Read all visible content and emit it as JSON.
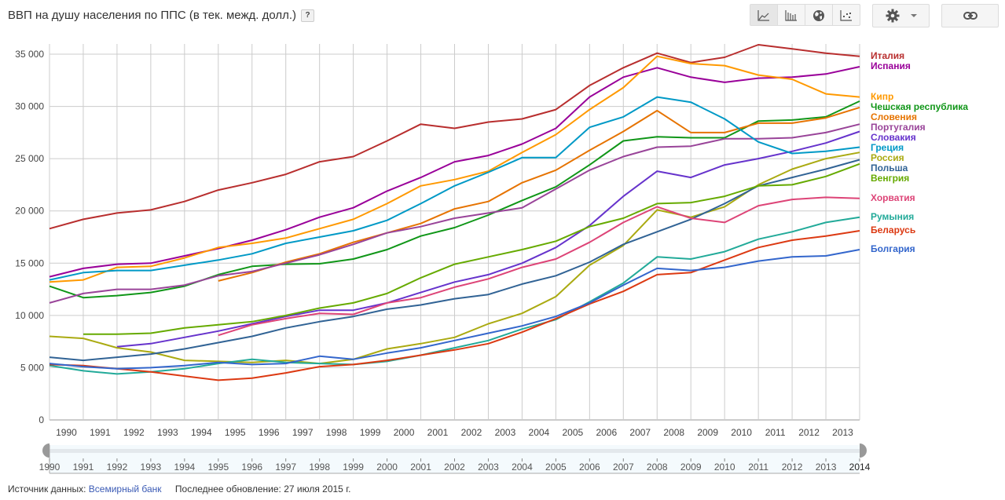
{
  "header": {
    "title": "ВВП на душу населения по ППС (в тек. межд. долл.)",
    "help_label": "?"
  },
  "toolbar": {
    "views": [
      {
        "name": "line-chart-icon",
        "active": true
      },
      {
        "name": "bar-chart-icon",
        "active": false
      },
      {
        "name": "map-globe-icon",
        "active": false
      },
      {
        "name": "scatter-chart-icon",
        "active": false
      }
    ],
    "settings_icon": "gear-icon",
    "settings_dropdown_icon": "caret-down-icon",
    "link_icon": "link-icon"
  },
  "footer": {
    "source_label": "Источник данных:",
    "source_link": "Всемирный банк",
    "updated": "Последнее обновление: 27 июля 2015 г."
  },
  "timeline": {
    "start": "1990",
    "end": "2014",
    "tick_labels": [
      "1990",
      "1991",
      "1992",
      "1993",
      "1994",
      "1995",
      "1996",
      "1997",
      "1998",
      "1999",
      "2000",
      "2001",
      "2002",
      "2003",
      "2004",
      "2005",
      "2006",
      "2007",
      "2008",
      "2009",
      "2010",
      "2011",
      "2012",
      "2013",
      "2014"
    ]
  },
  "chart_data": {
    "type": "line",
    "title": "ВВП на душу населения по ППС (в тек. межд. долл.)",
    "xlabel": "",
    "ylabel": "",
    "x": [
      1990,
      1991,
      1992,
      1993,
      1994,
      1995,
      1996,
      1997,
      1998,
      1999,
      2000,
      2001,
      2002,
      2003,
      2004,
      2005,
      2006,
      2007,
      2008,
      2009,
      2010,
      2011,
      2012,
      2013,
      2014
    ],
    "x_tick_labels": [
      "1990",
      "1991",
      "1992",
      "1993",
      "1994",
      "1995",
      "1996",
      "1997",
      "1998",
      "1999",
      "2000",
      "2001",
      "2002",
      "2003",
      "2004",
      "2005",
      "2006",
      "2007",
      "2008",
      "2009",
      "2010",
      "2011",
      "2012",
      "2013"
    ],
    "ylim": [
      0,
      35000
    ],
    "y_ticks": [
      0,
      5000,
      10000,
      15000,
      20000,
      25000,
      30000,
      35000
    ],
    "y_tick_labels": [
      "0",
      "5 000",
      "10 000",
      "15 000",
      "20 000",
      "25 000",
      "30 000",
      "35 000"
    ],
    "grid": true,
    "legend": "right",
    "series": [
      {
        "name": "Италия",
        "color": "#b82e2e",
        "values": [
          18300,
          19200,
          19800,
          20100,
          20900,
          22000,
          22700,
          23500,
          24700,
          25200,
          26700,
          28300,
          27900,
          28500,
          28800,
          29700,
          32000,
          33700,
          35100,
          34200,
          34700,
          35900,
          35500,
          35100,
          34800
        ]
      },
      {
        "name": "Испания",
        "color": "#990099",
        "values": [
          13700,
          14500,
          14900,
          15000,
          15700,
          16400,
          17200,
          18200,
          19400,
          20300,
          21900,
          23200,
          24700,
          25300,
          26400,
          27900,
          30900,
          32800,
          33700,
          32800,
          32300,
          32700,
          32800,
          33100,
          33800
        ]
      },
      {
        "name": "Кипр",
        "color": "#ff9900",
        "values": [
          13200,
          13400,
          14600,
          14700,
          15500,
          16500,
          16900,
          17400,
          18300,
          19200,
          20700,
          22400,
          23000,
          23800,
          25600,
          27300,
          29700,
          31800,
          34800,
          34100,
          33900,
          33000,
          32600,
          31200,
          30900
        ]
      },
      {
        "name": "Чешская республика",
        "color": "#109618",
        "values": [
          12800,
          11700,
          11900,
          12200,
          12800,
          13900,
          14700,
          14900,
          14950,
          15400,
          16300,
          17600,
          18400,
          19600,
          21000,
          22300,
          24400,
          26700,
          27100,
          27000,
          27000,
          28600,
          28700,
          29000,
          30500
        ]
      },
      {
        "name": "Словения",
        "color": "#e67300",
        "values": [
          null,
          null,
          null,
          null,
          null,
          13300,
          14100,
          15100,
          15900,
          17000,
          17900,
          18800,
          20200,
          20900,
          22700,
          23900,
          25800,
          27600,
          29600,
          27500,
          27500,
          28400,
          28400,
          28900,
          29900
        ]
      },
      {
        "name": "Португалия",
        "color": "#994499",
        "values": [
          11200,
          12100,
          12500,
          12500,
          12900,
          13800,
          14200,
          15000,
          15800,
          16800,
          17900,
          18500,
          19300,
          19800,
          20300,
          22100,
          23900,
          25200,
          26100,
          26200,
          26900,
          26900,
          27000,
          27500,
          28300
        ]
      },
      {
        "name": "Словакия",
        "color": "#6633cc",
        "values": [
          null,
          null,
          7000,
          7300,
          7900,
          8500,
          9200,
          9900,
          10500,
          10500,
          11200,
          12200,
          13200,
          13900,
          15000,
          16500,
          18600,
          21400,
          23800,
          23200,
          24400,
          25000,
          25700,
          26500,
          27600
        ]
      },
      {
        "name": "Греция",
        "color": "#0099c6",
        "values": [
          13400,
          14100,
          14300,
          14300,
          14800,
          15300,
          15900,
          16900,
          17500,
          18100,
          19100,
          20700,
          22400,
          23700,
          25100,
          25100,
          28000,
          29000,
          30900,
          30400,
          28800,
          26600,
          25500,
          25700,
          26100
        ]
      },
      {
        "name": "Россия",
        "color": "#aaaa11",
        "values": [
          8000,
          7800,
          6900,
          6500,
          5700,
          5600,
          5500,
          5700,
          5400,
          5800,
          6800,
          7300,
          7900,
          9200,
          10200,
          11800,
          14800,
          16700,
          20100,
          19400,
          20400,
          22500,
          24000,
          25000,
          25600
        ]
      },
      {
        "name": "Польша",
        "color": "#316395",
        "values": [
          6000,
          5700,
          6000,
          6300,
          6800,
          7400,
          8000,
          8800,
          9400,
          9900,
          10600,
          11000,
          11600,
          12000,
          13000,
          13800,
          15100,
          16800,
          18000,
          19200,
          20700,
          22400,
          23200,
          24000,
          24900
        ]
      },
      {
        "name": "Венгрия",
        "color": "#66aa00",
        "values": [
          null,
          8200,
          8200,
          8300,
          8800,
          9100,
          9400,
          10000,
          10700,
          11200,
          12100,
          13600,
          14900,
          15600,
          16300,
          17100,
          18500,
          19300,
          20700,
          20800,
          21400,
          22400,
          22500,
          23300,
          24500
        ]
      },
      {
        "name": "Хорватия",
        "color": "#dd4477",
        "values": [
          null,
          null,
          null,
          null,
          null,
          8100,
          9100,
          9700,
          10200,
          10100,
          11200,
          11700,
          12700,
          13500,
          14600,
          15400,
          17000,
          18900,
          20400,
          19300,
          18900,
          20500,
          21100,
          21300,
          21200
        ]
      },
      {
        "name": "Румыния",
        "color": "#22aa99",
        "values": [
          5200,
          4700,
          4400,
          4600,
          4900,
          5400,
          5800,
          5500,
          5400,
          5300,
          5600,
          6200,
          6900,
          7600,
          8700,
          9600,
          11300,
          13100,
          15600,
          15400,
          16100,
          17300,
          18000,
          18900,
          19400
        ]
      },
      {
        "name": "Беларусь",
        "color": "#dc3912",
        "values": [
          5300,
          5200,
          4900,
          4600,
          4200,
          3800,
          4000,
          4500,
          5100,
          5300,
          5700,
          6200,
          6700,
          7300,
          8400,
          9700,
          11100,
          12300,
          13900,
          14100,
          15300,
          16500,
          17200,
          17600,
          18100
        ]
      },
      {
        "name": "Болгария",
        "color": "#3366cc",
        "values": [
          5400,
          5100,
          4900,
          5000,
          5200,
          5500,
          5300,
          5400,
          6100,
          5800,
          6400,
          6900,
          7600,
          8300,
          9000,
          9900,
          11200,
          12900,
          14500,
          14300,
          14600,
          15200,
          15600,
          15700,
          16300
        ]
      }
    ]
  }
}
